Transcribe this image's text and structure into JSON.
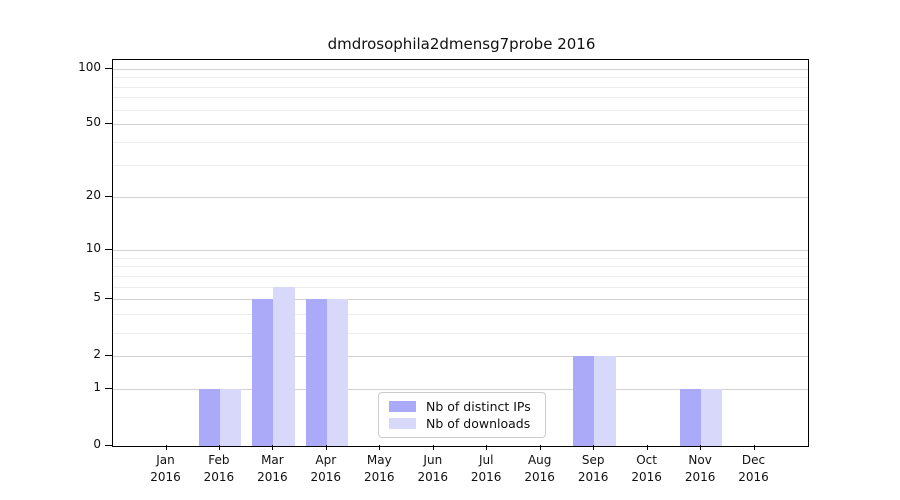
{
  "chart_data": {
    "type": "bar",
    "title": "dmdrosophila2dmensg7probe 2016",
    "year_label": "2016",
    "categories": [
      "Jan",
      "Feb",
      "Mar",
      "Apr",
      "May",
      "Jun",
      "Jul",
      "Aug",
      "Sep",
      "Oct",
      "Nov",
      "Dec"
    ],
    "series": [
      {
        "name": "Nb of distinct IPs",
        "color": "#aaaaf9",
        "values": [
          0,
          1,
          5,
          5,
          0,
          0,
          0,
          0,
          2,
          0,
          1,
          0
        ]
      },
      {
        "name": "Nb of downloads",
        "color": "#d8d8fa",
        "values": [
          0,
          1,
          6,
          5,
          0,
          0,
          0,
          0,
          2,
          0,
          1,
          0
        ]
      }
    ],
    "yscale": "log1p",
    "ylim": [
      0,
      111
    ],
    "xlim": [
      0,
      13
    ],
    "bar_width_fraction": 0.4,
    "yticks": [
      0,
      1,
      2,
      5,
      10,
      20,
      50,
      100
    ],
    "gridlines_minor": [
      3,
      4,
      6,
      7,
      8,
      9,
      30,
      40,
      60,
      70,
      80,
      90
    ],
    "grid": "on",
    "legend_position": "lower center",
    "xlabel": "",
    "ylabel": ""
  }
}
